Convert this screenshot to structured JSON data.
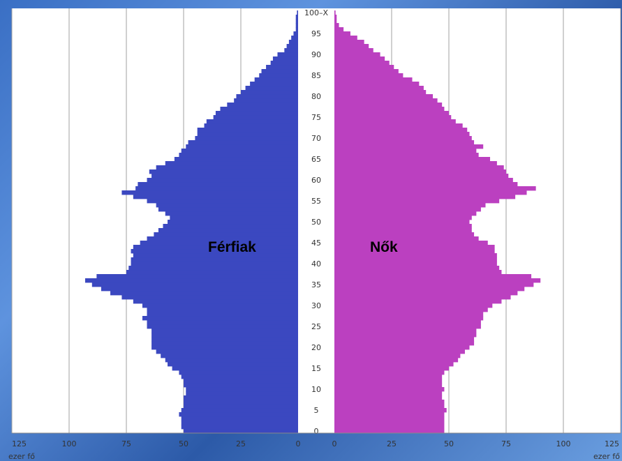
{
  "chart_data": {
    "type": "bar",
    "orientation": "horizontal-population-pyramid",
    "unit_label": "ezer fő",
    "series_labels": {
      "male": "Férfiak",
      "female": "Nők"
    },
    "colors": {
      "male": "#3b48c0",
      "female": "#bb40c0",
      "grid": "#a0a0a0",
      "plot_bg": "#ffffff"
    },
    "x_ticks": [
      0,
      25,
      50,
      75,
      100,
      125
    ],
    "xlim": [
      0,
      125
    ],
    "age_tick_labels": [
      "0",
      "5",
      "10",
      "15",
      "20",
      "25",
      "30",
      "35",
      "40",
      "45",
      "50",
      "55",
      "60",
      "65",
      "70",
      "75",
      "80",
      "85",
      "90",
      "95",
      "100–X"
    ],
    "ages": [
      0,
      1,
      2,
      3,
      4,
      5,
      6,
      7,
      8,
      9,
      10,
      11,
      12,
      13,
      14,
      15,
      16,
      17,
      18,
      19,
      20,
      21,
      22,
      23,
      24,
      25,
      26,
      27,
      28,
      29,
      30,
      31,
      32,
      33,
      34,
      35,
      36,
      37,
      38,
      39,
      40,
      41,
      42,
      43,
      44,
      45,
      46,
      47,
      48,
      49,
      50,
      51,
      52,
      53,
      54,
      55,
      56,
      57,
      58,
      59,
      60,
      61,
      62,
      63,
      64,
      65,
      66,
      67,
      68,
      69,
      70,
      71,
      72,
      73,
      74,
      75,
      76,
      77,
      78,
      79,
      80,
      81,
      82,
      83,
      84,
      85,
      86,
      87,
      88,
      89,
      90,
      91,
      92,
      93,
      94,
      95,
      96,
      97,
      98,
      99,
      100
    ],
    "male": [
      50,
      51,
      51,
      51,
      52,
      51,
      50,
      50,
      50,
      49,
      49,
      50,
      50,
      51,
      52,
      55,
      57,
      58,
      60,
      62,
      64,
      64,
      64,
      64,
      64,
      66,
      66,
      68,
      66,
      66,
      68,
      72,
      77,
      82,
      86,
      90,
      93,
      88,
      75,
      74,
      73,
      73,
      72,
      73,
      72,
      69,
      66,
      63,
      61,
      59,
      57,
      56,
      58,
      61,
      62,
      66,
      72,
      77,
      71,
      70,
      66,
      64,
      65,
      62,
      58,
      54,
      52,
      51,
      49,
      48,
      45,
      44,
      44,
      41,
      40,
      37,
      36,
      34,
      31,
      28,
      27,
      25,
      23,
      21,
      19,
      17,
      16,
      14,
      12,
      11,
      9,
      6,
      5,
      4,
      3,
      2,
      1,
      1,
      1,
      1,
      0.5
    ],
    "female": [
      48,
      48,
      48,
      48,
      48,
      49,
      48,
      48,
      47,
      47,
      48,
      47,
      47,
      47,
      48,
      50,
      52,
      54,
      55,
      57,
      59,
      61,
      61,
      62,
      62,
      64,
      64,
      65,
      65,
      67,
      69,
      73,
      77,
      80,
      83,
      87,
      90,
      86,
      73,
      72,
      71,
      71,
      71,
      70,
      70,
      67,
      63,
      61,
      60,
      60,
      59,
      60,
      62,
      64,
      66,
      72,
      79,
      84,
      88,
      80,
      78,
      76,
      75,
      74,
      71,
      68,
      63,
      62,
      65,
      61,
      60,
      59,
      58,
      56,
      53,
      51,
      50,
      48,
      47,
      45,
      43,
      40,
      39,
      37,
      34,
      30,
      28,
      26,
      24,
      22,
      20,
      17,
      15,
      13,
      10,
      7,
      4,
      2,
      1,
      1,
      0.5
    ],
    "grid": true
  }
}
